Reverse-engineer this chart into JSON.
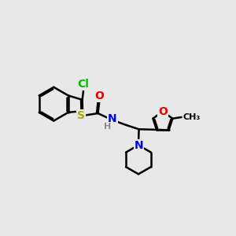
{
  "bg_color": "#e8e8e8",
  "bond_color": "#000000",
  "bond_width": 1.8,
  "atom_colors": {
    "Cl": "#00bb00",
    "S": "#aaaa00",
    "O": "#ee0000",
    "N": "#0000ee",
    "H": "#888888",
    "C": "#000000"
  },
  "figsize": [
    3.0,
    3.0
  ],
  "dpi": 100
}
